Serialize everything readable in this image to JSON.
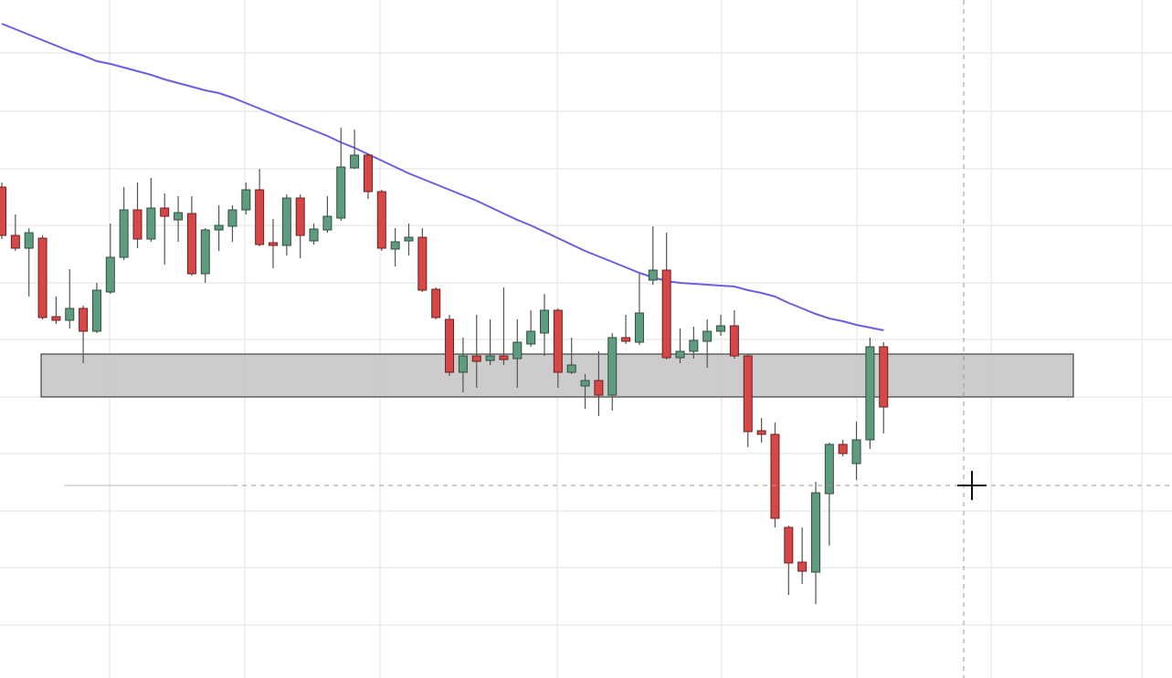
{
  "chart_data": {
    "type": "candlestick",
    "ylim": [
      0,
      743
    ],
    "grid": true,
    "up_color": "#5f9c7f",
    "down_color": "#d64848",
    "open": [
      538,
      485,
      471,
      482,
      396,
      392,
      405,
      380,
      423,
      461,
      513,
      481,
      515,
      502,
      509,
      443,
      491,
      495,
      513,
      535,
      477,
      474,
      526,
      479,
      491,
      504,
      559,
      573,
      533,
      470,
      479,
      483,
      426,
      393,
      335,
      353,
      348,
      353,
      350,
      366,
      378,
      403,
      335,
      320,
      326,
      310,
      373,
      368,
      436,
      447,
      351,
      358,
      369,
      380,
      386,
      353,
      271,
      267,
      165,
      127,
      116,
      202,
      256,
      235,
      261,
      363
    ],
    "high": [
      543,
      508,
      493,
      485,
      418,
      448,
      408,
      433,
      498,
      538,
      543,
      548,
      531,
      528,
      528,
      493,
      518,
      518,
      543,
      558,
      503,
      530,
      530,
      498,
      528,
      603,
      601,
      575,
      535,
      493,
      498,
      493,
      428,
      398,
      373,
      398,
      393,
      428,
      393,
      403,
      421,
      405,
      373,
      333,
      358,
      378,
      398,
      443,
      495,
      488,
      383,
      385,
      393,
      398,
      403,
      355,
      285,
      280,
      167,
      165,
      215,
      258,
      261,
      281,
      373,
      368
    ],
    "low": [
      481,
      468,
      418,
      393,
      388,
      383,
      345,
      378,
      421,
      458,
      471,
      478,
      453,
      478,
      441,
      433,
      468,
      478,
      508,
      473,
      449,
      463,
      460,
      475,
      488,
      501,
      558,
      525,
      468,
      451,
      463,
      423,
      393,
      331,
      313,
      318,
      343,
      343,
      318,
      363,
      353,
      318,
      333,
      295,
      287,
      293,
      366,
      365,
      431,
      349,
      345,
      350,
      340,
      375,
      350,
      253,
      258,
      165,
      91,
      103,
      81,
      145,
      243,
      217,
      251,
      268
    ],
    "close": [
      485,
      471,
      488,
      395,
      392,
      405,
      380,
      425,
      461,
      513,
      481,
      515,
      506,
      510,
      443,
      491,
      496,
      513,
      535,
      475,
      474,
      526,
      485,
      492,
      506,
      560,
      573,
      533,
      471,
      478,
      483,
      425,
      395,
      335,
      353,
      347,
      353,
      349,
      368,
      380,
      403,
      335,
      343,
      326,
      310,
      373,
      369,
      400,
      447,
      351,
      358,
      370,
      380,
      386,
      353,
      270,
      267,
      175,
      126,
      117,
      203,
      256,
      246,
      261,
      363,
      297
    ],
    "moving_average": {
      "color": "#6b5fe0",
      "values": [
        717,
        711,
        705,
        699,
        693,
        687,
        682,
        676,
        673,
        669,
        665,
        661,
        656,
        652,
        648,
        644,
        641,
        636,
        630,
        624,
        618,
        612,
        606,
        600,
        594,
        587,
        581,
        574,
        567,
        560,
        553,
        547,
        541,
        535,
        529,
        523,
        516,
        509,
        502,
        496,
        489,
        482,
        475,
        468,
        462,
        456,
        450,
        444,
        439,
        435,
        433,
        432,
        431,
        430,
        429,
        425,
        422,
        418,
        411,
        405,
        399,
        394,
        391,
        387,
        384,
        381
      ]
    },
    "zone": {
      "low": 308,
      "high": 355,
      "color": "#c6c6c6"
    }
  }
}
